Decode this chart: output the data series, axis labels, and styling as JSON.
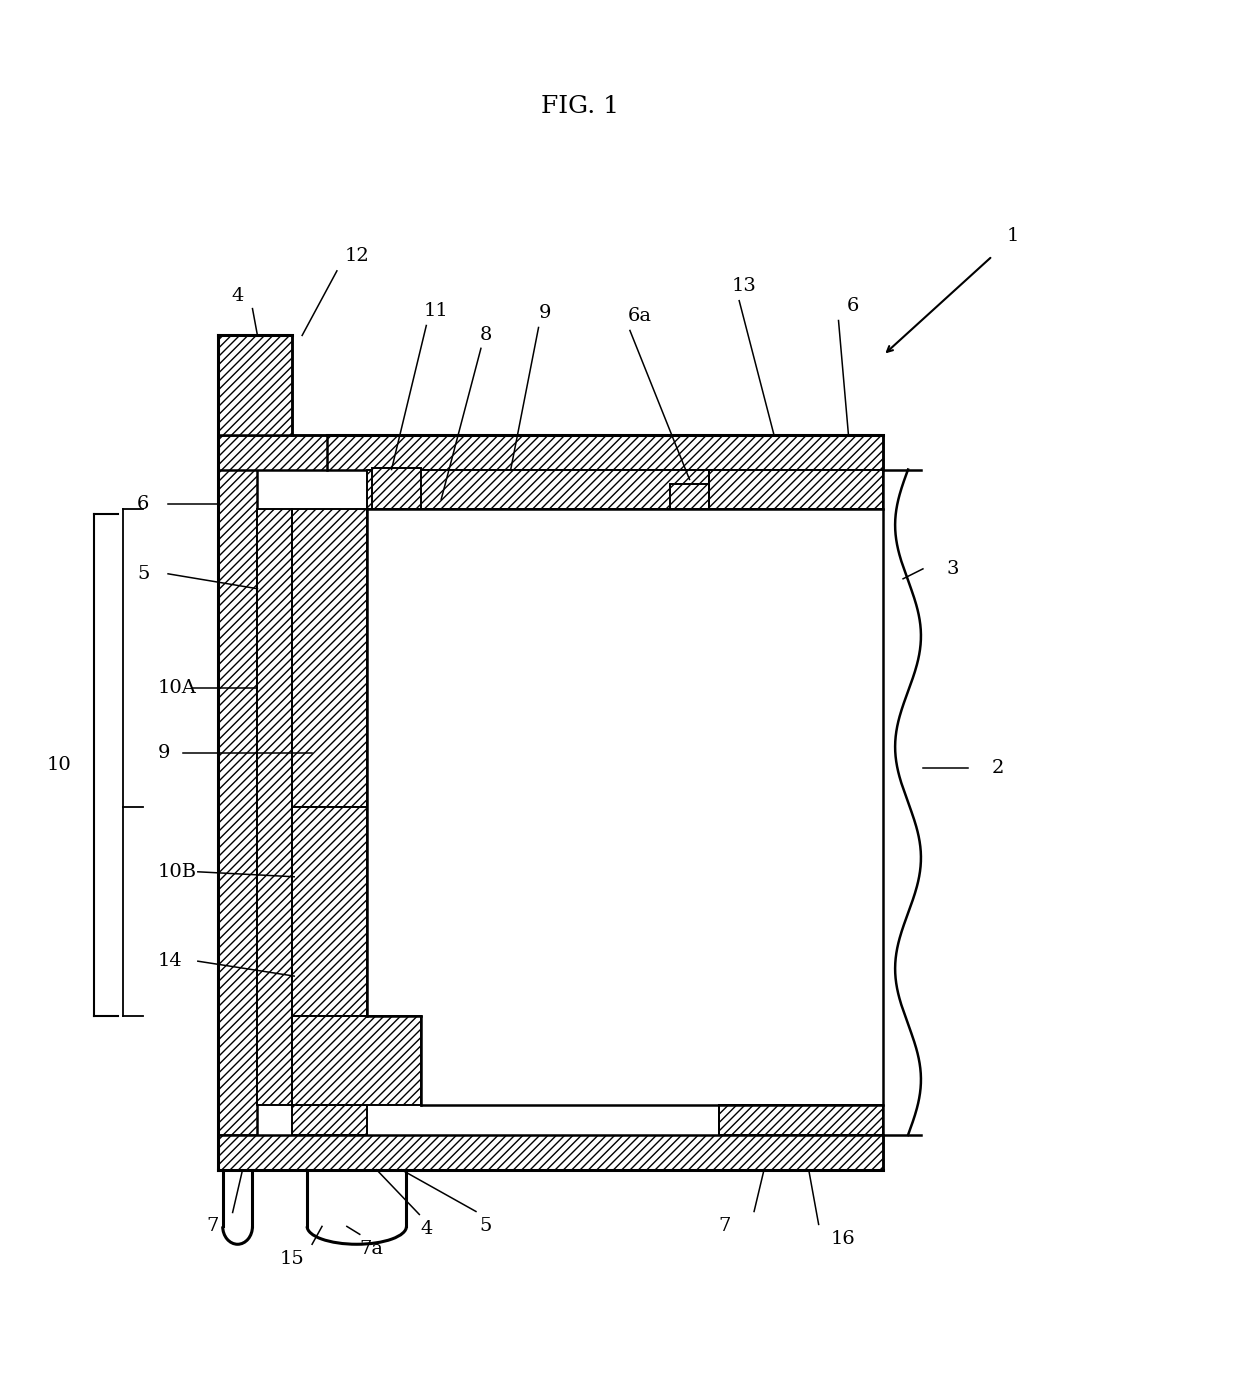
{
  "title": "FIG. 1",
  "bg_color": "#ffffff",
  "fig_width": 12.37,
  "fig_height": 13.88,
  "labels": {
    "title": "FIG. 1",
    "1": "1",
    "2": "2",
    "3": "3",
    "4t": "4",
    "4b": "4",
    "5t": "5",
    "5b": "5",
    "6l": "6",
    "6r": "6",
    "6a": "6a",
    "7l": "7",
    "7r": "7",
    "7a": "7a",
    "8": "8",
    "9t": "9",
    "9l": "9",
    "10": "10",
    "10A": "10A",
    "10B": "10B",
    "11": "11",
    "12": "12",
    "13": "13",
    "14": "14",
    "15": "15",
    "16": "16"
  }
}
